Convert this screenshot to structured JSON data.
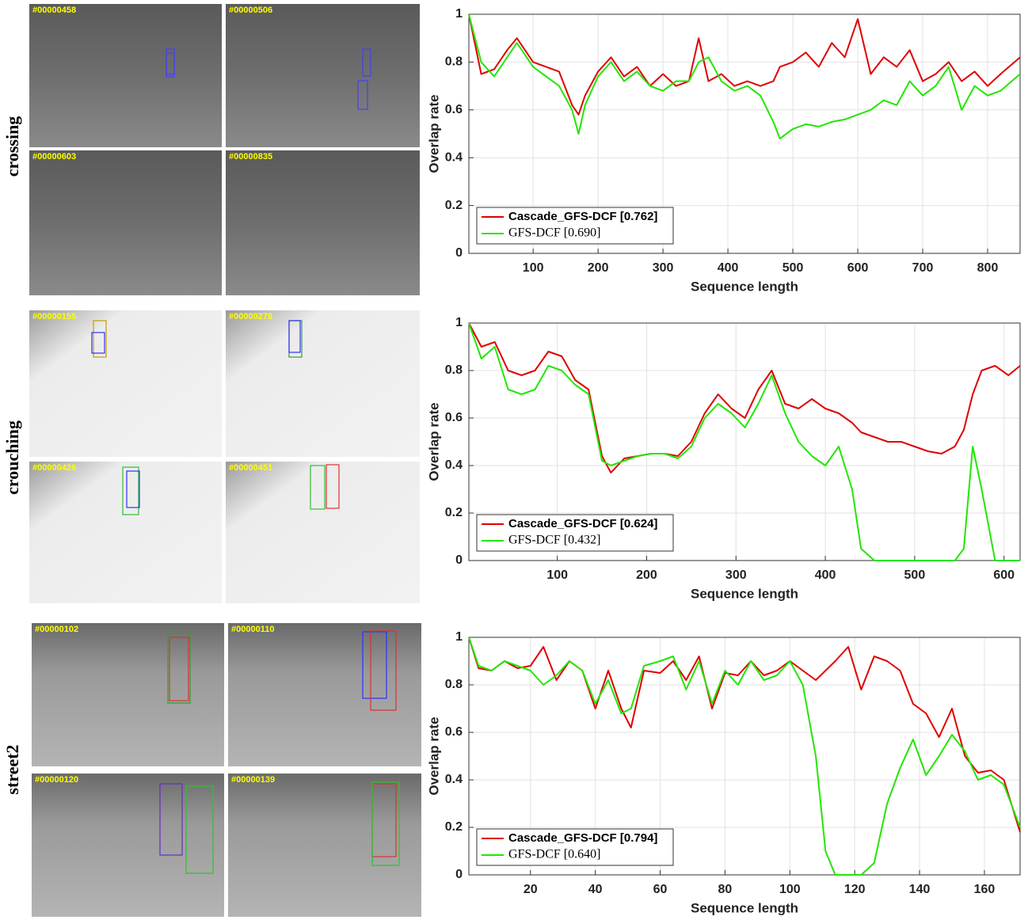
{
  "rows": [
    {
      "label": "crossing",
      "frames": [
        "#00000458",
        "#00000506",
        "#00000603",
        "#00000835"
      ]
    },
    {
      "label": "crouching",
      "frames": [
        "#00000155",
        "#00000278",
        "#00000426",
        "#00000451"
      ]
    },
    {
      "label": "street2",
      "frames": [
        "#00000102",
        "#00000110",
        "#00000120",
        "#00000139"
      ]
    }
  ],
  "chart_data": [
    {
      "type": "line",
      "xlabel": "Sequence length",
      "ylabel": "Overlap rate",
      "x": [
        1,
        20,
        40,
        60,
        75,
        100,
        120,
        140,
        160,
        170,
        180,
        200,
        220,
        240,
        260,
        280,
        300,
        320,
        340,
        355,
        370,
        390,
        410,
        430,
        450,
        470,
        480,
        500,
        520,
        540,
        560,
        580,
        600,
        620,
        640,
        660,
        680,
        700,
        720,
        740,
        760,
        780,
        800,
        820,
        850
      ],
      "series": [
        {
          "name": "Cascade_GFS-DCF [0.762]",
          "color": "#e00000",
          "values": [
            1.0,
            0.75,
            0.77,
            0.85,
            0.9,
            0.8,
            0.78,
            0.76,
            0.62,
            0.58,
            0.66,
            0.76,
            0.82,
            0.74,
            0.78,
            0.7,
            0.75,
            0.7,
            0.72,
            0.9,
            0.72,
            0.75,
            0.7,
            0.72,
            0.7,
            0.72,
            0.78,
            0.8,
            0.84,
            0.78,
            0.88,
            0.82,
            0.98,
            0.75,
            0.82,
            0.78,
            0.85,
            0.72,
            0.75,
            0.8,
            0.72,
            0.76,
            0.7,
            0.75,
            0.82
          ]
        },
        {
          "name": "GFS-DCF [0.690]",
          "color": "#22e600",
          "values": [
            1.0,
            0.8,
            0.74,
            0.82,
            0.88,
            0.78,
            0.74,
            0.7,
            0.6,
            0.5,
            0.62,
            0.74,
            0.8,
            0.72,
            0.76,
            0.7,
            0.68,
            0.72,
            0.72,
            0.8,
            0.82,
            0.72,
            0.68,
            0.7,
            0.66,
            0.55,
            0.48,
            0.52,
            0.54,
            0.53,
            0.55,
            0.56,
            0.58,
            0.6,
            0.64,
            0.62,
            0.72,
            0.66,
            0.7,
            0.78,
            0.6,
            0.7,
            0.66,
            0.68,
            0.75
          ]
        }
      ],
      "xlim": [
        1,
        850
      ],
      "xticks": [
        100,
        200,
        300,
        400,
        500,
        600,
        700,
        800
      ],
      "ylim": [
        0,
        1
      ],
      "yticks": [
        0,
        0.2,
        0.4,
        0.6,
        0.8,
        1
      ],
      "grid": true,
      "legend": "lower left"
    },
    {
      "type": "line",
      "xlabel": "Sequence length",
      "ylabel": "Overlap rate",
      "x": [
        1,
        15,
        30,
        45,
        60,
        75,
        90,
        105,
        120,
        135,
        150,
        160,
        175,
        190,
        205,
        220,
        235,
        250,
        265,
        280,
        295,
        310,
        325,
        340,
        355,
        370,
        385,
        400,
        415,
        430,
        440,
        455,
        470,
        485,
        500,
        515,
        530,
        545,
        555,
        565,
        575,
        590,
        605,
        618
      ],
      "series": [
        {
          "name": "Cascade_GFS-DCF [0.624]",
          "color": "#e00000",
          "values": [
            1.0,
            0.9,
            0.92,
            0.8,
            0.78,
            0.8,
            0.88,
            0.86,
            0.76,
            0.72,
            0.44,
            0.37,
            0.43,
            0.44,
            0.45,
            0.45,
            0.44,
            0.5,
            0.62,
            0.7,
            0.64,
            0.6,
            0.72,
            0.8,
            0.66,
            0.64,
            0.68,
            0.64,
            0.62,
            0.58,
            0.54,
            0.52,
            0.5,
            0.5,
            0.48,
            0.46,
            0.45,
            0.48,
            0.55,
            0.7,
            0.8,
            0.82,
            0.78,
            0.82
          ]
        },
        {
          "name": "GFS-DCF [0.432]",
          "color": "#22e600",
          "values": [
            1.0,
            0.85,
            0.9,
            0.72,
            0.7,
            0.72,
            0.82,
            0.8,
            0.74,
            0.7,
            0.42,
            0.4,
            0.42,
            0.44,
            0.45,
            0.45,
            0.43,
            0.48,
            0.6,
            0.66,
            0.62,
            0.56,
            0.66,
            0.78,
            0.62,
            0.5,
            0.44,
            0.4,
            0.48,
            0.3,
            0.05,
            0,
            0,
            0,
            0,
            0,
            0,
            0,
            0.05,
            0.48,
            0.3,
            0,
            0,
            0
          ]
        }
      ],
      "xlim": [
        1,
        618
      ],
      "xticks": [
        100,
        200,
        300,
        400,
        500,
        600
      ],
      "ylim": [
        0,
        1
      ],
      "yticks": [
        0,
        0.2,
        0.4,
        0.6,
        0.8,
        1
      ],
      "grid": true,
      "legend": "lower left"
    },
    {
      "type": "line",
      "xlabel": "Sequence length",
      "ylabel": "Overlap rate",
      "x": [
        1,
        4,
        8,
        12,
        16,
        20,
        24,
        28,
        32,
        36,
        40,
        44,
        48,
        51,
        55,
        60,
        64,
        68,
        72,
        76,
        80,
        84,
        88,
        92,
        96,
        100,
        104,
        108,
        111,
        114,
        118,
        122,
        126,
        130,
        134,
        138,
        142,
        146,
        150,
        154,
        158,
        162,
        166,
        171
      ],
      "series": [
        {
          "name": "Cascade_GFS-DCF [0.794]",
          "color": "#e00000",
          "values": [
            1.0,
            0.87,
            0.86,
            0.9,
            0.87,
            0.88,
            0.96,
            0.82,
            0.9,
            0.86,
            0.7,
            0.86,
            0.7,
            0.62,
            0.86,
            0.85,
            0.9,
            0.82,
            0.92,
            0.7,
            0.85,
            0.84,
            0.9,
            0.84,
            0.86,
            0.9,
            0.86,
            0.82,
            0.86,
            0.9,
            0.96,
            0.78,
            0.92,
            0.9,
            0.86,
            0.72,
            0.68,
            0.58,
            0.7,
            0.5,
            0.43,
            0.44,
            0.4,
            0.18
          ]
        },
        {
          "name": "GFS-DCF [0.640]",
          "color": "#22e600",
          "values": [
            1.0,
            0.88,
            0.86,
            0.9,
            0.88,
            0.86,
            0.8,
            0.84,
            0.9,
            0.86,
            0.72,
            0.82,
            0.68,
            0.7,
            0.88,
            0.9,
            0.92,
            0.78,
            0.9,
            0.72,
            0.86,
            0.8,
            0.9,
            0.82,
            0.84,
            0.9,
            0.8,
            0.5,
            0.1,
            0,
            0,
            0,
            0.05,
            0.3,
            0.45,
            0.57,
            0.42,
            0.5,
            0.59,
            0.52,
            0.4,
            0.42,
            0.38,
            0.2
          ]
        }
      ],
      "xlim": [
        1,
        171
      ],
      "xticks": [
        20,
        40,
        60,
        80,
        100,
        120,
        140,
        160
      ],
      "ylim": [
        0,
        1
      ],
      "yticks": [
        0,
        0.2,
        0.4,
        0.6,
        0.8,
        1
      ],
      "grid": true,
      "legend": "lower left"
    }
  ]
}
